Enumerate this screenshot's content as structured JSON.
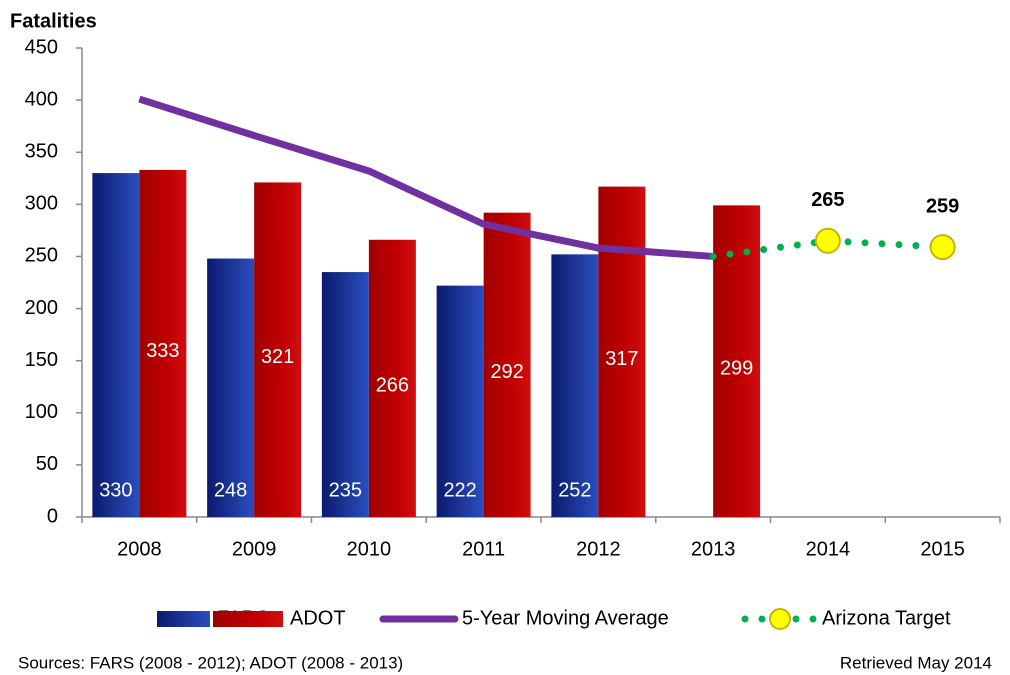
{
  "chart_data": {
    "type": "bar",
    "y_label": "Fatalities",
    "categories": [
      "2008",
      "2009",
      "2010",
      "2011",
      "2012",
      "2013",
      "2014",
      "2015"
    ],
    "series": [
      {
        "name": "FARS",
        "type": "bar",
        "color": "#1f3a9e",
        "values": [
          330,
          248,
          235,
          222,
          252,
          null,
          null,
          null
        ]
      },
      {
        "name": "ADOT",
        "type": "bar",
        "color": "#c00000",
        "values": [
          333,
          321,
          266,
          292,
          317,
          299,
          null,
          null
        ]
      },
      {
        "name": "5-Year Moving Average",
        "type": "line",
        "color": "#7030a0",
        "values": [
          401,
          366,
          332,
          281,
          258,
          250,
          null,
          null
        ]
      },
      {
        "name": "Arizona Target",
        "type": "dotted-line",
        "color": "#00b050",
        "marker_color": "#ffff00",
        "values": [
          null,
          null,
          null,
          null,
          null,
          250,
          265,
          259
        ]
      }
    ],
    "ylim": [
      0,
      450
    ],
    "yticks": [
      0,
      50,
      100,
      150,
      200,
      250,
      300,
      350,
      400,
      450
    ],
    "legend": "bottom",
    "footnote_left": "Sources: FARS (2008 - 2012); ADOT (2008 - 2013)",
    "footnote_right": "Retrieved May 2014"
  }
}
